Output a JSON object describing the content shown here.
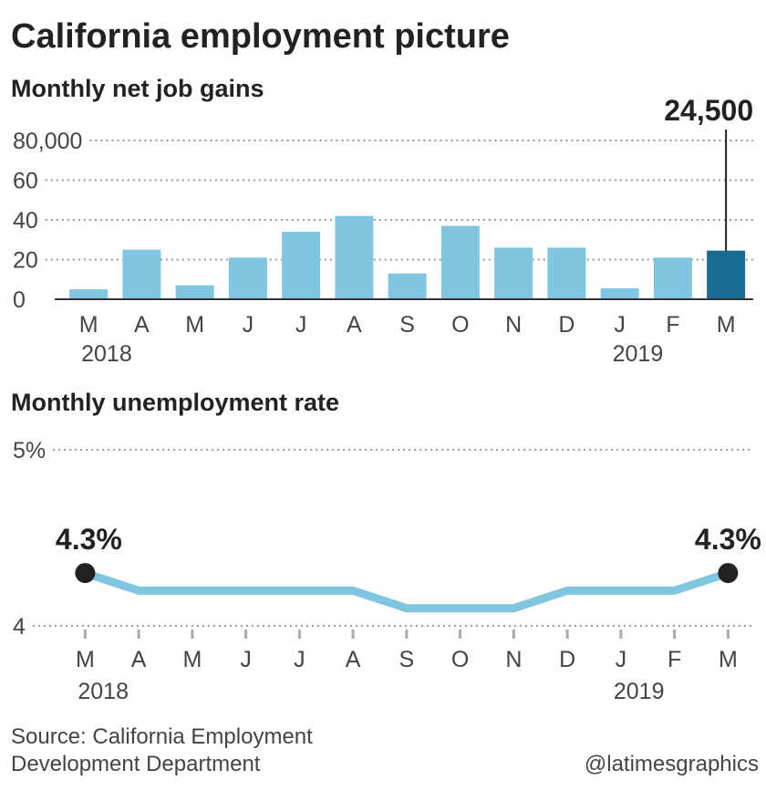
{
  "title": "California employment picture",
  "source": [
    "Source: California Employment",
    "Development Department"
  ],
  "credit": "@latimesgraphics",
  "chart_data": [
    {
      "type": "bar",
      "title": "Monthly net job gains",
      "categories": [
        "M",
        "A",
        "M",
        "J",
        "J",
        "A",
        "S",
        "O",
        "N",
        "D",
        "J",
        "F",
        "M"
      ],
      "year_labels": [
        {
          "index": 0,
          "label": "2018"
        },
        {
          "index": 10,
          "label": "2019"
        }
      ],
      "values": [
        5000,
        25000,
        7000,
        21000,
        34000,
        42000,
        13000,
        37000,
        26000,
        26000,
        5500,
        21000,
        24500
      ],
      "value_labels": [
        null,
        null,
        null,
        null,
        null,
        null,
        null,
        null,
        null,
        null,
        null,
        null,
        "24,500"
      ],
      "colors": [
        "#80c6e0",
        "#80c6e0",
        "#80c6e0",
        "#80c6e0",
        "#80c6e0",
        "#80c6e0",
        "#80c6e0",
        "#80c6e0",
        "#80c6e0",
        "#80c6e0",
        "#80c6e0",
        "#80c6e0",
        "#1a6b91"
      ],
      "ylim": [
        0,
        80000
      ],
      "yticks": [
        0,
        {
          "value": 20000,
          "label": "20"
        },
        {
          "value": 40000,
          "label": "40"
        },
        {
          "value": 60000,
          "label": "60"
        },
        {
          "value": 80000,
          "label": "80,000"
        }
      ],
      "grid": true
    },
    {
      "type": "line",
      "title": "Monthly unemployment rate",
      "categories": [
        "M",
        "A",
        "M",
        "J",
        "J",
        "A",
        "S",
        "O",
        "N",
        "D",
        "J",
        "F",
        "M"
      ],
      "year_labels": [
        {
          "index": 0,
          "label": "2018"
        },
        {
          "index": 10,
          "label": "2019"
        }
      ],
      "values": [
        4.3,
        4.2,
        4.2,
        4.2,
        4.2,
        4.2,
        4.1,
        4.1,
        4.1,
        4.2,
        4.2,
        4.2,
        4.3
      ],
      "value_labels": [
        "4.3%",
        null,
        null,
        null,
        null,
        null,
        null,
        null,
        null,
        null,
        null,
        null,
        "4.3%"
      ],
      "color": "#80c6e0",
      "ylim": [
        4,
        5
      ],
      "yticks": [
        4,
        {
          "value": 5,
          "label": "5%"
        }
      ],
      "grid": true
    }
  ]
}
